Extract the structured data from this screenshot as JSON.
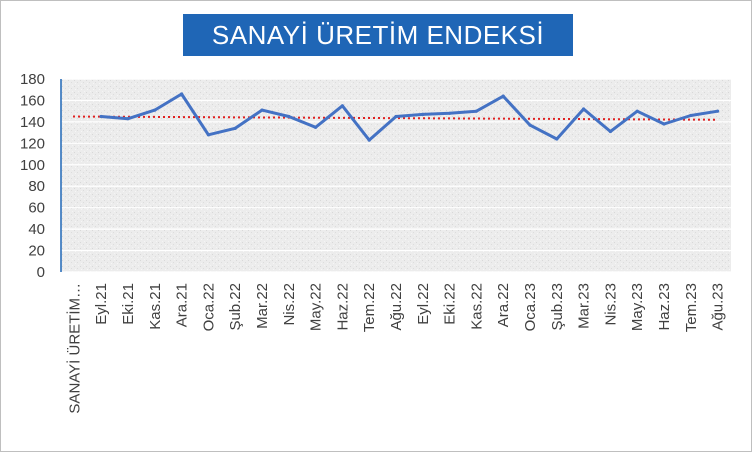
{
  "chart_data": {
    "type": "line",
    "title": "SANAYİ ÜRETİM ENDEKSİ",
    "categories": [
      "SANAYİ ÜRETİM…",
      "Eyl.21",
      "Eki.21",
      "Kas.21",
      "Ara.21",
      "Oca.22",
      "Şub.22",
      "Mar.22",
      "Nis.22",
      "May.22",
      "Haz.22",
      "Tem.22",
      "Ağu.22",
      "Eyl.22",
      "Eki.22",
      "Kas.22",
      "Ara.22",
      "Oca.23",
      "Şub.23",
      "Mar.23",
      "Nis.23",
      "May.23",
      "Haz.23",
      "Tem.23",
      "Ağu.23"
    ],
    "series": [
      {
        "values": [
          null,
          145,
          143,
          151,
          166,
          128,
          134,
          151,
          145,
          135,
          155,
          123,
          145,
          147,
          148,
          150,
          164,
          137,
          124,
          152,
          131,
          150,
          138,
          146,
          150
        ],
        "color": "#4472c4"
      }
    ],
    "trendline": {
      "from": 145,
      "to": 142,
      "color": "#e02020"
    },
    "ylim": [
      0,
      180
    ],
    "yticks": [
      0,
      20,
      40,
      60,
      80,
      100,
      120,
      140,
      160,
      180
    ],
    "grid": true,
    "xlabel": "",
    "ylabel": ""
  }
}
